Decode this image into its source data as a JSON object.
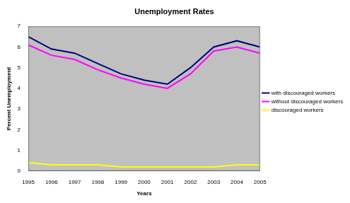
{
  "chart_data": {
    "type": "line",
    "title": "Unemployment Rates",
    "xlabel": "Years",
    "ylabel": "Percent Unemployment",
    "categories": [
      "1995",
      "1996",
      "1997",
      "1998",
      "1999",
      "2000",
      "2001",
      "2002",
      "2003",
      "2004",
      "2005"
    ],
    "series": [
      {
        "name": "with discouraged workers",
        "color": "#000080",
        "values": [
          6.5,
          5.9,
          5.7,
          5.2,
          4.7,
          4.4,
          4.2,
          5.0,
          6.0,
          6.3,
          6.0
        ]
      },
      {
        "name": "without discouraged workers",
        "color": "#ff00ff",
        "values": [
          6.1,
          5.6,
          5.4,
          4.9,
          4.5,
          4.2,
          4.0,
          4.7,
          5.8,
          6.0,
          5.7
        ]
      },
      {
        "name": "discouraged workers",
        "color": "#ffff00",
        "values": [
          0.4,
          0.3,
          0.3,
          0.3,
          0.2,
          0.2,
          0.2,
          0.2,
          0.2,
          0.3,
          0.3
        ]
      }
    ],
    "ylim": [
      0,
      7
    ],
    "yticks": [
      0,
      1,
      2,
      3,
      4,
      5,
      6,
      7
    ],
    "grid": false,
    "legend": "right"
  }
}
